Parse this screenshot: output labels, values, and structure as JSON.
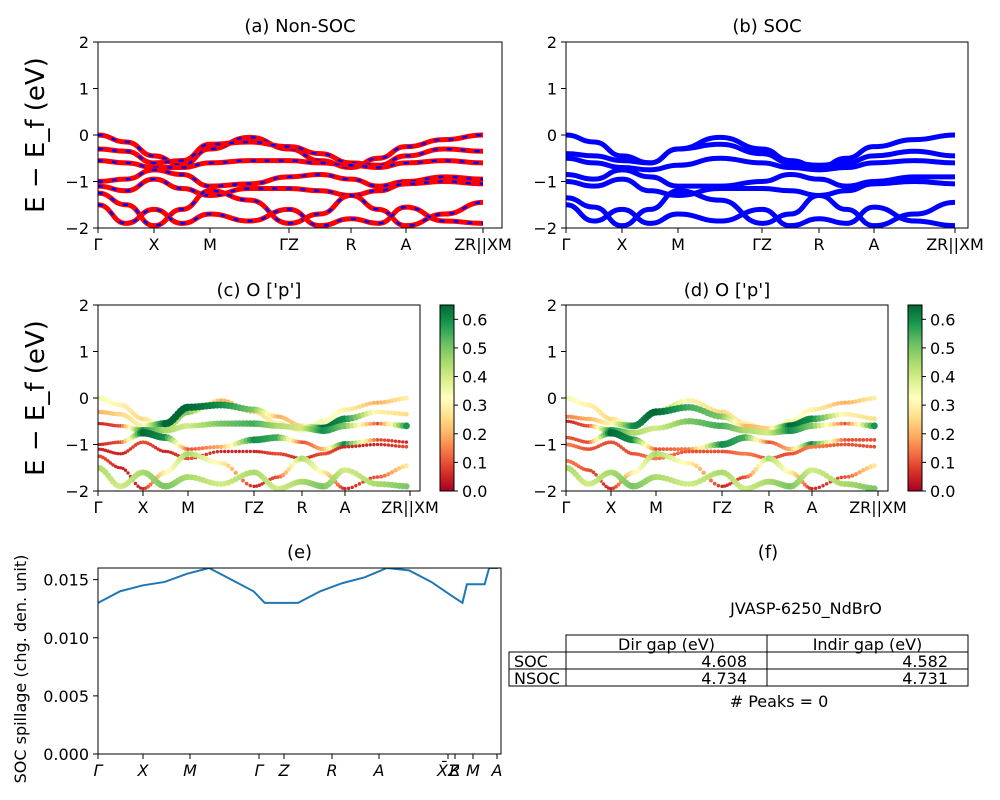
{
  "colors": {
    "nonsoc_line": "#ff0000",
    "nonsoc_dash": "#0000ff",
    "soc_line": "#0000ff",
    "spillage_line": "#1f77b4",
    "colormap": [
      "#a50026",
      "#d73027",
      "#f46d43",
      "#fdae61",
      "#fee08b",
      "#ffffbf",
      "#d9ef8b",
      "#a6d96a",
      "#66bd63",
      "#1a9850",
      "#006837"
    ]
  },
  "chart_data": [
    {
      "id": "a",
      "type": "line",
      "title": "(a) Non-SOC",
      "ylabel": "E − E_f (eV)",
      "ylim": [
        -2,
        2
      ],
      "yticks": [
        "2",
        "1",
        "0",
        "−1",
        "−2"
      ],
      "xticks": [
        "Γ",
        "X",
        "M",
        "ΓZ",
        "R",
        "A",
        "ZR||XM"
      ],
      "style": "red solid with blue dashes",
      "series": [
        {
          "values": [
            0.0,
            -0.15,
            -0.45,
            -0.65,
            -0.3,
            -0.05,
            -0.3,
            -0.55,
            -0.7,
            -0.5,
            -0.25,
            -0.1,
            0.0
          ]
        },
        {
          "values": [
            -0.3,
            -0.35,
            -0.6,
            -0.55,
            -0.2,
            -0.15,
            -0.25,
            -0.4,
            -0.6,
            -0.65,
            -0.45,
            -0.3,
            -0.35
          ]
        },
        {
          "values": [
            -0.55,
            -0.6,
            -0.7,
            -0.7,
            -0.6,
            -0.55,
            -0.55,
            -0.6,
            -0.65,
            -0.7,
            -0.6,
            -0.55,
            -0.6
          ]
        },
        {
          "values": [
            -1.0,
            -0.95,
            -0.75,
            -0.85,
            -1.1,
            -1.05,
            -0.9,
            -0.85,
            -0.95,
            -1.1,
            -1.0,
            -0.9,
            -0.95
          ]
        },
        {
          "values": [
            -1.1,
            -1.2,
            -0.95,
            -1.15,
            -1.3,
            -1.15,
            -1.15,
            -1.2,
            -1.3,
            -1.2,
            -1.05,
            -1.0,
            -1.05
          ]
        },
        {
          "values": [
            -1.25,
            -1.5,
            -1.95,
            -1.6,
            -1.2,
            -1.4,
            -1.9,
            -1.7,
            -1.3,
            -1.6,
            -1.95,
            -1.7,
            -1.45
          ]
        },
        {
          "values": [
            -1.5,
            -1.9,
            -1.6,
            -1.9,
            -1.7,
            -1.85,
            -1.6,
            -1.95,
            -1.8,
            -1.9,
            -1.55,
            -1.85,
            -1.9
          ]
        }
      ]
    },
    {
      "id": "b",
      "type": "line",
      "title": "(b) SOC",
      "ylim": [
        -2,
        2
      ],
      "yticks": [
        "2",
        "1",
        "0",
        "−1",
        "−2"
      ],
      "xticks": [
        "Γ",
        "X",
        "M",
        "ΓZ",
        "R",
        "A",
        "ZR||XM"
      ],
      "style": "blue solid",
      "series": [
        {
          "values": [
            0.0,
            -0.15,
            -0.45,
            -0.6,
            -0.3,
            -0.05,
            -0.3,
            -0.55,
            -0.7,
            -0.5,
            -0.25,
            -0.1,
            0.0
          ]
        },
        {
          "values": [
            -0.4,
            -0.45,
            -0.55,
            -0.6,
            -0.3,
            -0.2,
            -0.4,
            -0.6,
            -0.65,
            -0.6,
            -0.45,
            -0.35,
            -0.45
          ]
        },
        {
          "values": [
            -0.5,
            -0.6,
            -0.7,
            -0.75,
            -0.65,
            -0.5,
            -0.6,
            -0.7,
            -0.75,
            -0.7,
            -0.6,
            -0.55,
            -0.6
          ]
        },
        {
          "values": [
            -0.85,
            -0.95,
            -0.75,
            -0.9,
            -1.1,
            -1.1,
            -1.0,
            -0.85,
            -0.95,
            -1.1,
            -1.0,
            -0.9,
            -0.9
          ]
        },
        {
          "values": [
            -1.0,
            -1.1,
            -0.95,
            -1.2,
            -1.3,
            -1.15,
            -1.15,
            -1.2,
            -1.3,
            -1.2,
            -1.05,
            -1.0,
            -1.05
          ]
        },
        {
          "values": [
            -1.35,
            -1.55,
            -1.95,
            -1.6,
            -1.2,
            -1.4,
            -1.9,
            -1.7,
            -1.3,
            -1.6,
            -1.95,
            -1.7,
            -1.45
          ]
        },
        {
          "values": [
            -1.5,
            -1.85,
            -1.6,
            -1.9,
            -1.7,
            -1.85,
            -1.6,
            -1.95,
            -1.8,
            -1.9,
            -1.55,
            -1.85,
            -1.95
          ]
        }
      ]
    },
    {
      "id": "c",
      "type": "scatter",
      "title": "(c)  O ['p']",
      "ylabel": "E − E_f (eV)",
      "ylim": [
        -2,
        2
      ],
      "yticks": [
        "2",
        "1",
        "0",
        "−1",
        "−2"
      ],
      "xticks": [
        "Γ",
        "X",
        "M",
        "ΓZ",
        "R",
        "A",
        "ZR||XM"
      ],
      "colorbar": {
        "range": [
          0.0,
          0.65
        ],
        "ticks": [
          "0.6",
          "0.5",
          "0.4",
          "0.3",
          "0.2",
          "0.1",
          "0.0"
        ]
      },
      "series": [
        {
          "values": [
            0.0,
            -0.15,
            -0.45,
            -0.65,
            -0.3,
            -0.05,
            -0.3,
            -0.55,
            -0.7,
            -0.5,
            -0.25,
            -0.1,
            0.0
          ],
          "weight": [
            0.35,
            0.3,
            0.25,
            0.4,
            0.5,
            0.2,
            0.25,
            0.3,
            0.3,
            0.35,
            0.3,
            0.2,
            0.3
          ]
        },
        {
          "values": [
            -0.3,
            -0.35,
            -0.6,
            -0.55,
            -0.2,
            -0.15,
            -0.25,
            -0.4,
            -0.6,
            -0.65,
            -0.45,
            -0.3,
            -0.35
          ],
          "weight": [
            0.2,
            0.25,
            0.3,
            0.65,
            0.65,
            0.6,
            0.5,
            0.2,
            0.25,
            0.65,
            0.6,
            0.3,
            0.25
          ]
        },
        {
          "values": [
            -0.55,
            -0.6,
            -0.7,
            -0.7,
            -0.6,
            -0.55,
            -0.55,
            -0.6,
            -0.65,
            -0.7,
            -0.6,
            -0.55,
            -0.6
          ],
          "weight": [
            0.05,
            0.1,
            0.6,
            0.45,
            0.4,
            0.5,
            0.55,
            0.45,
            0.4,
            0.6,
            0.5,
            0.1,
            0.65
          ]
        },
        {
          "values": [
            -1.0,
            -0.95,
            -0.75,
            -0.85,
            -1.1,
            -1.05,
            -0.9,
            -0.85,
            -0.95,
            -1.1,
            -1.0,
            -0.9,
            -0.95
          ],
          "weight": [
            0.05,
            0.1,
            0.65,
            0.6,
            0.1,
            0.2,
            0.6,
            0.55,
            0.1,
            0.2,
            0.6,
            0.1,
            0.05
          ]
        },
        {
          "values": [
            -1.1,
            -1.2,
            -0.95,
            -1.15,
            -1.3,
            -1.15,
            -1.15,
            -1.2,
            -1.3,
            -1.2,
            -1.05,
            -1.0,
            -1.05
          ],
          "weight": [
            0.05,
            0.05,
            0.1,
            0.05,
            0.1,
            0.05,
            0.05,
            0.1,
            0.05,
            0.1,
            0.05,
            0.05,
            0.1
          ]
        },
        {
          "values": [
            -1.25,
            -1.5,
            -1.95,
            -1.6,
            -1.2,
            -1.4,
            -1.9,
            -1.7,
            -1.3,
            -1.6,
            -1.95,
            -1.7,
            -1.45
          ],
          "weight": [
            0.1,
            0.05,
            0.05,
            0.3,
            0.45,
            0.3,
            0.05,
            0.1,
            0.45,
            0.3,
            0.05,
            0.1,
            0.3
          ]
        },
        {
          "values": [
            -1.5,
            -1.9,
            -1.6,
            -1.9,
            -1.7,
            -1.85,
            -1.6,
            -1.95,
            -1.8,
            -1.9,
            -1.55,
            -1.85,
            -1.9
          ],
          "weight": [
            0.45,
            0.4,
            0.45,
            0.5,
            0.45,
            0.4,
            0.45,
            0.4,
            0.45,
            0.5,
            0.4,
            0.45,
            0.5
          ]
        }
      ]
    },
    {
      "id": "d",
      "type": "scatter",
      "title": "(d) O ['p']",
      "ylim": [
        -2,
        2
      ],
      "yticks": [
        "2",
        "1",
        "0",
        "−1",
        "−2"
      ],
      "xticks": [
        "Γ",
        "X",
        "M",
        "ΓZ",
        "R",
        "A",
        "ZR||XM"
      ],
      "colorbar": {
        "range": [
          0.0,
          0.65
        ],
        "ticks": [
          "0.6",
          "0.5",
          "0.4",
          "0.3",
          "0.2",
          "0.1",
          "0.0"
        ]
      },
      "series": [
        {
          "values": [
            0.0,
            -0.15,
            -0.45,
            -0.6,
            -0.3,
            -0.05,
            -0.3,
            -0.55,
            -0.7,
            -0.5,
            -0.25,
            -0.1,
            0.0
          ],
          "weight": [
            0.35,
            0.3,
            0.25,
            0.4,
            0.5,
            0.3,
            0.25,
            0.3,
            0.3,
            0.35,
            0.3,
            0.2,
            0.3
          ]
        },
        {
          "values": [
            -0.4,
            -0.45,
            -0.55,
            -0.6,
            -0.3,
            -0.2,
            -0.4,
            -0.6,
            -0.65,
            -0.6,
            -0.45,
            -0.35,
            -0.45
          ],
          "weight": [
            0.15,
            0.2,
            0.3,
            0.6,
            0.65,
            0.55,
            0.5,
            0.2,
            0.25,
            0.65,
            0.6,
            0.3,
            0.25
          ]
        },
        {
          "values": [
            -0.5,
            -0.6,
            -0.7,
            -0.75,
            -0.65,
            -0.5,
            -0.6,
            -0.7,
            -0.75,
            -0.7,
            -0.6,
            -0.55,
            -0.6
          ],
          "weight": [
            0.05,
            0.1,
            0.6,
            0.45,
            0.4,
            0.5,
            0.55,
            0.45,
            0.4,
            0.6,
            0.5,
            0.1,
            0.65
          ]
        },
        {
          "values": [
            -0.85,
            -0.95,
            -0.75,
            -0.9,
            -1.1,
            -1.1,
            -1.0,
            -0.85,
            -0.95,
            -1.1,
            -1.0,
            -0.9,
            -0.9
          ],
          "weight": [
            0.1,
            0.1,
            0.65,
            0.6,
            0.1,
            0.15,
            0.6,
            0.55,
            0.1,
            0.2,
            0.6,
            0.1,
            0.1
          ]
        },
        {
          "values": [
            -1.0,
            -1.1,
            -0.95,
            -1.2,
            -1.3,
            -1.15,
            -1.15,
            -1.2,
            -1.3,
            -1.2,
            -1.05,
            -1.0,
            -1.05
          ],
          "weight": [
            0.15,
            0.1,
            0.1,
            0.1,
            0.15,
            0.1,
            0.1,
            0.15,
            0.1,
            0.1,
            0.15,
            0.1,
            0.1
          ]
        },
        {
          "values": [
            -1.35,
            -1.55,
            -1.95,
            -1.6,
            -1.2,
            -1.4,
            -1.9,
            -1.7,
            -1.3,
            -1.6,
            -1.95,
            -1.7,
            -1.45
          ],
          "weight": [
            0.15,
            0.1,
            0.05,
            0.3,
            0.45,
            0.3,
            0.05,
            0.1,
            0.45,
            0.3,
            0.05,
            0.1,
            0.3
          ]
        },
        {
          "values": [
            -1.5,
            -1.85,
            -1.6,
            -1.9,
            -1.7,
            -1.85,
            -1.6,
            -1.95,
            -1.8,
            -1.9,
            -1.55,
            -1.85,
            -1.95
          ],
          "weight": [
            0.45,
            0.4,
            0.45,
            0.5,
            0.45,
            0.4,
            0.45,
            0.4,
            0.45,
            0.5,
            0.4,
            0.45,
            0.5
          ]
        }
      ]
    },
    {
      "id": "e",
      "type": "line",
      "title": "(e)",
      "ylabel": "SOC spillage (chg. den. unit)",
      "ylim": [
        0,
        0.016
      ],
      "yticks": [
        "0.015",
        "0.010",
        "0.005",
        "0.000"
      ],
      "ytick_values": [
        0.015,
        0.01,
        0.005,
        0.0
      ],
      "xticks": [
        "Γ",
        "X",
        "M",
        "Γ",
        "Z",
        "R",
        "A",
        "X̄Z",
        "R",
        "M",
        "A"
      ],
      "x": [
        0,
        0.5,
        1.0,
        1.5,
        2.0,
        2.5,
        3.0,
        3.5,
        3.75,
        4.0,
        4.5,
        5.0,
        5.5,
        6.0,
        6.5,
        7.0,
        7.5,
        8.0,
        8.2,
        8.3,
        8.7,
        8.8,
        9.0
      ],
      "values": [
        0.013,
        0.014,
        0.0145,
        0.0148,
        0.0155,
        0.016,
        0.015,
        0.014,
        0.013,
        0.013,
        0.013,
        0.014,
        0.0147,
        0.0152,
        0.016,
        0.0158,
        0.0148,
        0.0135,
        0.013,
        0.0146,
        0.0146,
        0.016,
        0.016
      ]
    },
    {
      "id": "f",
      "type": "table",
      "title": "(f)",
      "subtitle": "JVASP-6250_NdBrO",
      "columns": [
        "Dir gap (eV)",
        "Indir gap (eV)"
      ],
      "rows": [
        {
          "label": "SOC",
          "values": [
            "4.608",
            "4.582"
          ]
        },
        {
          "label": "NSOC",
          "values": [
            "4.734",
            "4.731"
          ]
        }
      ],
      "footer": "# Peaks = 0"
    }
  ]
}
